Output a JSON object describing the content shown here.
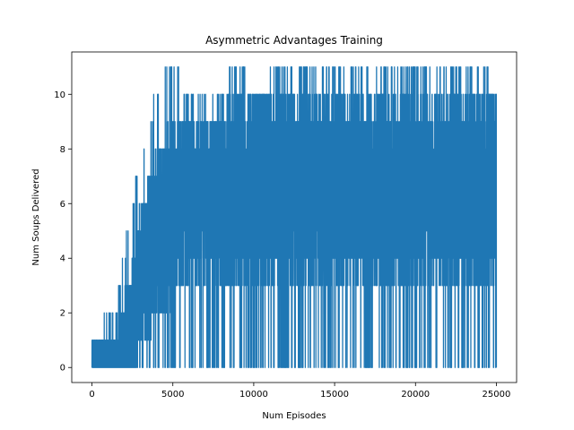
{
  "chart_data": {
    "type": "line",
    "title": "Asymmetric Advantages Training",
    "xlabel": "Num Episodes",
    "ylabel": "Num Soups Delivered",
    "xlim": [
      -1250,
      26250
    ],
    "ylim": [
      -0.55,
      11.55
    ],
    "xticks": [
      0,
      5000,
      10000,
      15000,
      20000,
      25000
    ],
    "yticks": [
      0,
      2,
      4,
      6,
      8,
      10
    ],
    "grid": false,
    "legend": "none",
    "color": "#1f77b4",
    "series": [
      {
        "x": [
          0,
          1500,
          2500,
          3000,
          3500,
          4000,
          5000,
          6000,
          7000,
          8000,
          9000,
          10000,
          12000,
          14000,
          16000,
          18000,
          20000,
          22000,
          24000,
          25000
        ],
        "y_low": [
          0,
          0,
          0,
          0,
          0,
          0,
          0,
          0,
          0,
          0,
          0,
          0,
          0,
          0,
          0,
          0,
          0,
          0,
          0,
          0
        ],
        "y_high": [
          1,
          2,
          6,
          8,
          9,
          10,
          11,
          10,
          10,
          10,
          11,
          10,
          11,
          11,
          11,
          11,
          11,
          11,
          11,
          10
        ],
        "y_dense_low": [
          0,
          0,
          0,
          1,
          1,
          2,
          2,
          3,
          3,
          3,
          3,
          3,
          3,
          3,
          3,
          3,
          3,
          3,
          3,
          3
        ],
        "y_dense_high": [
          1,
          1,
          4,
          6,
          7,
          8,
          9,
          9,
          9,
          10,
          10,
          10,
          10,
          10,
          10,
          10,
          10,
          10,
          10,
          10
        ],
        "x_last": 25000
      }
    ]
  }
}
